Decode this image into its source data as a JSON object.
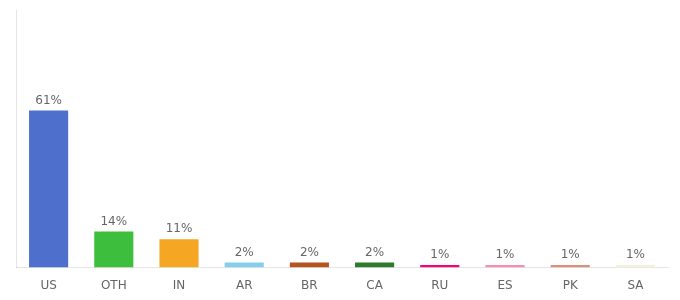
{
  "chart_data": {
    "type": "bar",
    "categories": [
      "US",
      "OTH",
      "IN",
      "AR",
      "BR",
      "CA",
      "RU",
      "ES",
      "PK",
      "SA"
    ],
    "values": [
      61,
      14,
      11,
      2,
      2,
      2,
      1,
      1,
      1,
      1
    ],
    "value_labels": [
      "61%",
      "14%",
      "11%",
      "2%",
      "2%",
      "2%",
      "1%",
      "1%",
      "1%",
      "1%"
    ],
    "colors": [
      "#4f6fcc",
      "#3dbf3d",
      "#f5a623",
      "#87ceeb",
      "#b5541c",
      "#2d7a2d",
      "#f0057a",
      "#f48fb1",
      "#d4937a",
      "#f5f0dc"
    ],
    "ylim": [
      0,
      100
    ],
    "grid": false,
    "data_labels": true,
    "tick_labels": "x"
  }
}
